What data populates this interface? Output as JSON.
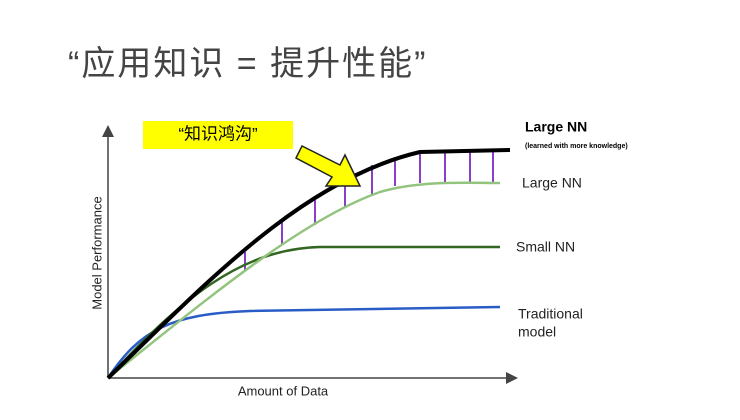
{
  "title": "“应用知识 = 提升性能”",
  "annotation": "“知识鸿沟”",
  "axes": {
    "y_label": "Model Performance",
    "x_label": "Amount of Data"
  },
  "curves": [
    {
      "label": "Large NN",
      "note": "(learned with more knowledge)"
    },
    {
      "label": "Large NN"
    },
    {
      "label": "Small NN"
    },
    {
      "label_lines": [
        "Traditional",
        "model"
      ]
    }
  ]
}
